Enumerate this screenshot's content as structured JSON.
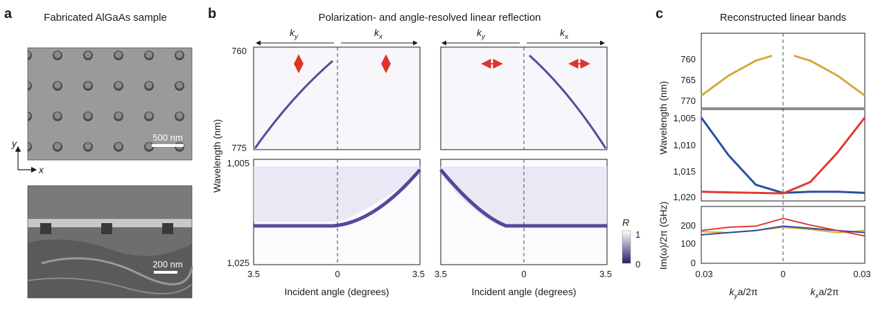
{
  "panel_a": {
    "letter": "a",
    "title": "Fabricated AlGaAs sample",
    "scale_top": "500 nm",
    "scale_bottom": "200 nm",
    "axis_y": "y",
    "axis_x": "x"
  },
  "panel_b": {
    "letter": "b",
    "title": "Polarization- and angle-resolved linear reflection",
    "ky": "k",
    "ky_sub": "y",
    "kx": "k",
    "kx_sub": "x",
    "ylabel": "Wavelength (nm)",
    "xlabel": "Incident angle (degrees)",
    "y_ticks_top": [
      "760",
      "775"
    ],
    "y_ticks_bottom": [
      "1,005",
      "1,025"
    ],
    "x_ticks": [
      "3.5",
      "0",
      "3.5"
    ],
    "colorbar_label": "R",
    "colorbar_ticks": [
      "1",
      "0"
    ]
  },
  "panel_c": {
    "letter": "c",
    "title": "Reconstructed linear bands",
    "ylabel_wavelength": "Wavelength (nm)",
    "ylabel_loss": "Im(ω)/2π (GHz)",
    "top_ticks": [
      "760",
      "765",
      "770"
    ],
    "mid_ticks": [
      "1,005",
      "1,010",
      "1,015",
      "1,020"
    ],
    "bot_ticks": [
      "200",
      "100",
      "0"
    ],
    "x_ticks": [
      "0.03",
      "0",
      "0.03"
    ],
    "xlabel_left": "k",
    "xlabel_left_sub": "y",
    "xlabel_left_suffix": "a/2π",
    "xlabel_right": "k",
    "xlabel_right_sub": "x",
    "xlabel_right_suffix": "a/2π",
    "colors": {
      "gold": "#d4a93a",
      "blue": "#2b4ea0",
      "red": "#e03a2f"
    }
  },
  "chart_data": [
    {
      "type": "line",
      "title": "Reconstructed linear bands",
      "ylabel": "Wavelength (nm)",
      "x": [
        -0.03,
        -0.02,
        -0.01,
        -0.004,
        0.004,
        0.01,
        0.02,
        0.03
      ],
      "series": [
        {
          "values": [
            769.5,
            765.5,
            762.5,
            761.5,
            761.5,
            762.5,
            765.5,
            769.5
          ]
        }
      ],
      "ylim": [
        772,
        757
      ]
    },
    {
      "type": "line",
      "ylabel": "Wavelength (nm)",
      "x": [
        -0.03,
        -0.02,
        -0.01,
        0,
        0.01,
        0.02,
        0.03
      ],
      "series": [
        {
          "values": [
            1005.5,
            1012.5,
            1018.0,
            1019.5,
            1019.3,
            1019.3,
            1019.5
          ]
        },
        {
          "values": [
            1019.3,
            1019.4,
            1019.5,
            1019.6,
            1017.5,
            1012.0,
            1005.5
          ]
        }
      ],
      "ylim": [
        1021,
        1004
      ]
    },
    {
      "type": "line",
      "ylabel": "Im(ω)/2π (GHz)",
      "x": [
        -0.03,
        -0.02,
        -0.01,
        0,
        0.01,
        0.02,
        0.03
      ],
      "series": [
        {
          "values": [
            145,
            140,
            150,
            165,
            155,
            140,
            150
          ]
        },
        {
          "values": [
            130,
            140,
            150,
            170,
            160,
            150,
            140
          ]
        },
        {
          "values": [
            150,
            165,
            170,
            205,
            175,
            150,
            125
          ]
        }
      ],
      "ylim": [
        0,
        260
      ]
    }
  ]
}
